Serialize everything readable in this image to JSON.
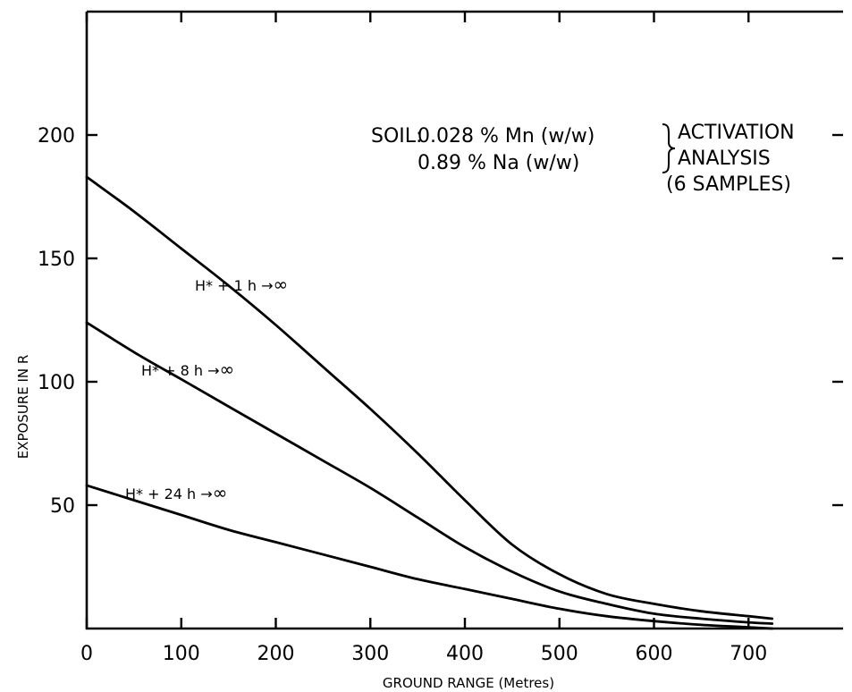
{
  "chart_data": {
    "type": "line",
    "title": "",
    "xlabel": "GROUND RANGE (Metres)",
    "ylabel": "EXPOSURE IN R",
    "xlim": [
      0,
      800
    ],
    "ylim": [
      0,
      250
    ],
    "x_ticks": [
      0,
      100,
      200,
      300,
      400,
      500,
      600,
      700
    ],
    "y_ticks": [
      50,
      100,
      150,
      200
    ],
    "x_tick_labels": [
      "0",
      "100",
      "200",
      "300",
      "400",
      "500",
      "600",
      "700"
    ],
    "y_tick_labels": [
      "50",
      "100",
      "150",
      "200"
    ],
    "grid": false,
    "legend": "none (labels on curves)",
    "annotation": {
      "prefix": "SOIL:",
      "line1": "0.028 % Mn (w/w)",
      "line2": "0.89 % Na (w/w)",
      "method1": "ACTIVATION",
      "method2": "ANALYSIS",
      "method3": "(6 SAMPLES)"
    },
    "series": [
      {
        "name": "H* + 1 h",
        "label_arrow": "→",
        "label_suffix": "∞",
        "x": [
          0,
          50,
          100,
          150,
          200,
          250,
          300,
          350,
          400,
          450,
          500,
          550,
          600,
          650,
          700,
          725
        ],
        "values": [
          183,
          169,
          154,
          139,
          123,
          106,
          89,
          71,
          52,
          34,
          22,
          14,
          10,
          7,
          5,
          4
        ]
      },
      {
        "name": "H* + 8 h",
        "label_arrow": "→",
        "label_suffix": "∞",
        "x": [
          0,
          50,
          100,
          150,
          200,
          250,
          300,
          350,
          400,
          450,
          500,
          550,
          600,
          650,
          700,
          725
        ],
        "values": [
          124,
          112,
          101,
          90,
          79,
          68,
          57,
          45,
          33,
          23,
          15,
          10,
          6,
          4,
          2.5,
          2
        ]
      },
      {
        "name": "H* + 24 h",
        "label_arrow": "→",
        "label_suffix": "∞",
        "x": [
          0,
          50,
          100,
          150,
          200,
          250,
          300,
          350,
          400,
          450,
          500,
          550,
          600,
          650,
          700,
          725
        ],
        "values": [
          58,
          52,
          46,
          40,
          35,
          30,
          25,
          20,
          16,
          12,
          8,
          5,
          3,
          1.5,
          0.5,
          0
        ]
      }
    ]
  }
}
